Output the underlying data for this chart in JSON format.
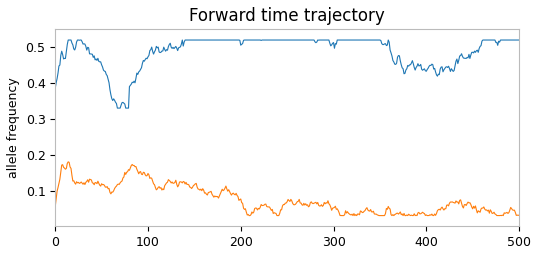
{
  "title": "Forward time trajectory",
  "ylabel": "allele frequency",
  "xlabel": "",
  "xlim": [
    0,
    500
  ],
  "ylim": [
    0.0,
    0.55
  ],
  "yticks": [
    0.1,
    0.2,
    0.3,
    0.4,
    0.5
  ],
  "xticks": [
    0,
    100,
    200,
    300,
    400,
    500
  ],
  "blue_color": "#1f77b4",
  "orange_color": "#ff7f0e",
  "linewidth": 0.8,
  "figsize": [
    5.38,
    2.56
  ],
  "dpi": 100,
  "title_fontsize": 12,
  "label_fontsize": 9,
  "tick_fontsize": 9,
  "background_color": "#ffffff"
}
